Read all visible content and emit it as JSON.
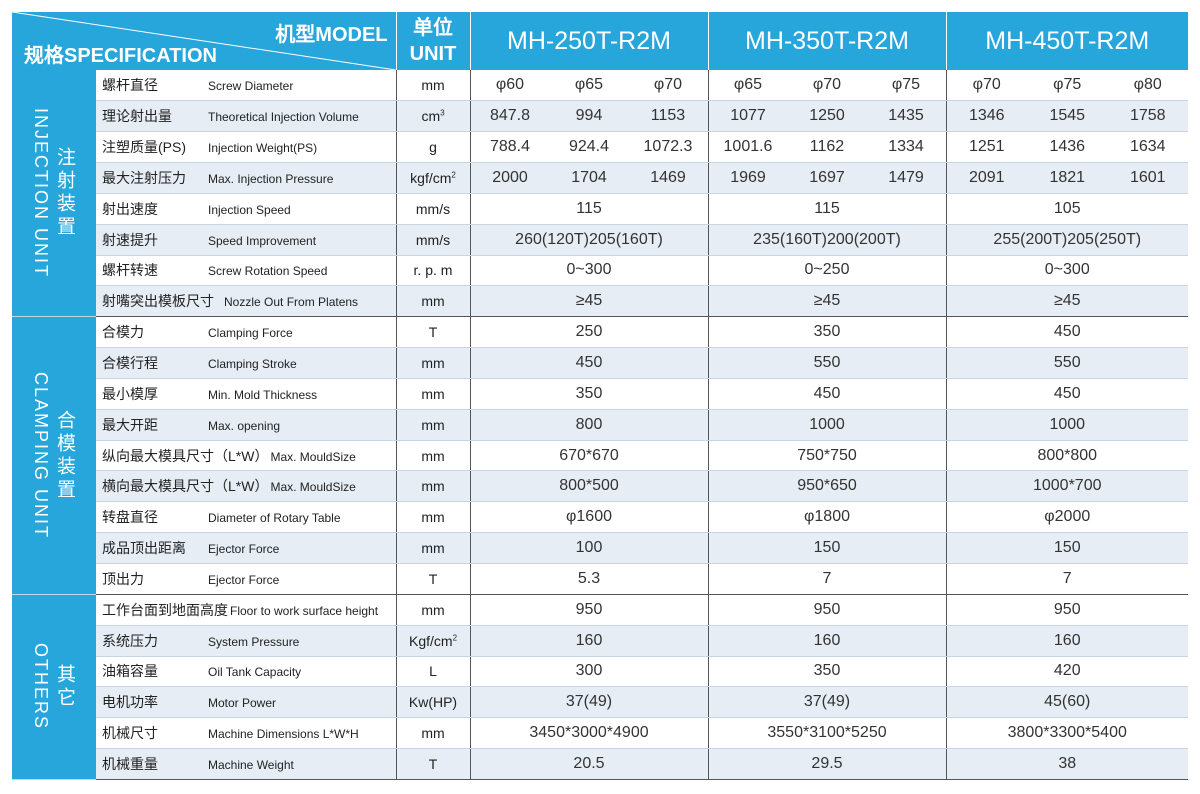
{
  "header": {
    "model_label": "机型MODEL",
    "spec_label": "规格SPECIFICATION",
    "unit_label_zh": "单位",
    "unit_label_en": "UNIT",
    "models": [
      "MH-250T-R2M",
      "MH-350T-R2M",
      "MH-450T-R2M"
    ]
  },
  "colors": {
    "header_blue": "#27a6dc",
    "row_shade": "#e6edf5"
  },
  "groups": [
    {
      "zh": "注射装置",
      "en": "INJECTION UNIT",
      "rows": [
        {
          "zh": "螺杆直径",
          "en": "Screw  Diameter",
          "unit": "mm",
          "unit_sup": "",
          "values": [
            "φ60",
            "φ65",
            "φ70",
            "φ65",
            "φ70",
            "φ75",
            "φ70",
            "φ75",
            "φ80"
          ]
        },
        {
          "zh": "理论射出量",
          "en": "Theoretical  Injection  Volume",
          "unit": "cm",
          "unit_sup": "3",
          "values": [
            "847.8",
            "994",
            "1153",
            "1077",
            "1250",
            "1435",
            "1346",
            "1545",
            "1758"
          ]
        },
        {
          "zh": "注塑质量(PS)",
          "en": "Injection  Weight(PS)",
          "unit": "g",
          "unit_sup": "",
          "values": [
            "788.4",
            "924.4",
            "1072.3",
            "1001.6",
            "1162",
            "1334",
            "1251",
            "1436",
            "1634"
          ]
        },
        {
          "zh": "最大注射压力",
          "en": "Max. Injection  Pressure",
          "unit": "kgf/cm",
          "unit_sup": "2",
          "values": [
            "2000",
            "1704",
            "1469",
            "1969",
            "1697",
            "1479",
            "2091",
            "1821",
            "1601"
          ]
        },
        {
          "zh": "射出速度",
          "en": "Injection  Speed",
          "unit": "mm/s",
          "unit_sup": "",
          "values": [
            "115",
            "115",
            "105"
          ]
        },
        {
          "zh": "射速提升",
          "en": "Speed Improvement",
          "unit": "mm/s",
          "unit_sup": "",
          "values": [
            "260(120T)205(160T)",
            "235(160T)200(200T)",
            "255(200T)205(250T)"
          ]
        },
        {
          "zh": "螺杆转速",
          "en": "Screw  Rotation  Speed",
          "unit": "r. p. m",
          "unit_sup": "",
          "values": [
            "0~300",
            "0~250",
            "0~300"
          ]
        },
        {
          "zh": "射嘴突出模板尺寸",
          "en": "Nozzle  Out  From  Platens",
          "unit": "mm",
          "unit_sup": "",
          "values": [
            "≥45",
            "≥45",
            "≥45"
          ]
        }
      ]
    },
    {
      "zh": "合模装置",
      "en": "CLAMPING UNIT",
      "rows": [
        {
          "zh": "合模力",
          "en": "Clamping  Force",
          "unit": "T",
          "unit_sup": "",
          "values": [
            "250",
            "350",
            "450"
          ]
        },
        {
          "zh": "合模行程",
          "en": "Clamping  Stroke",
          "unit": "mm",
          "unit_sup": "",
          "values": [
            "450",
            "550",
            "550"
          ]
        },
        {
          "zh": "最小模厚",
          "en": "Min. Mold  Thickness",
          "unit": "mm",
          "unit_sup": "",
          "values": [
            "350",
            "450",
            "450"
          ]
        },
        {
          "zh": "最大开距",
          "en": "Max. opening",
          "unit": "mm",
          "unit_sup": "",
          "values": [
            "800",
            "1000",
            "1000"
          ]
        },
        {
          "zh": "纵向最大模具尺寸（L*W）",
          "en": "Max. MouldSize",
          "unit": "mm",
          "unit_sup": "",
          "values": [
            "670*670",
            "750*750",
            "800*800"
          ]
        },
        {
          "zh": "横向最大模具尺寸（L*W）",
          "en": "Max. MouldSize",
          "unit": "mm",
          "unit_sup": "",
          "values": [
            "800*500",
            "950*650",
            "1000*700"
          ]
        },
        {
          "zh": "转盘直径",
          "en": "Diameter  of  Rotary  Table",
          "unit": "mm",
          "unit_sup": "",
          "values": [
            "φ1600",
            "φ1800",
            "φ2000"
          ]
        },
        {
          "zh": "成品顶出距离",
          "en": "Ejector  Force",
          "unit": "mm",
          "unit_sup": "",
          "values": [
            "100",
            "150",
            "150"
          ]
        },
        {
          "zh": "顶出力",
          "en": "Ejector  Force",
          "unit": "T",
          "unit_sup": "",
          "values": [
            "5.3",
            "7",
            "7"
          ]
        }
      ]
    },
    {
      "zh": "其它",
      "en": "OTHERS",
      "rows": [
        {
          "zh": "工作台面到地面高度",
          "en": "Floor to work surface height",
          "unit": "mm",
          "unit_sup": "",
          "values": [
            "950",
            "950",
            "950"
          ]
        },
        {
          "zh": "系统压力",
          "en": "System  Pressure",
          "unit": "Kgf/cm",
          "unit_sup": "2",
          "values": [
            "160",
            "160",
            "160"
          ]
        },
        {
          "zh": "油箱容量",
          "en": "Oil  Tank Capacity",
          "unit": "L",
          "unit_sup": "",
          "values": [
            "300",
            "350",
            "420"
          ]
        },
        {
          "zh": "电机功率",
          "en": "Motor Power",
          "unit": "Kw(HP)",
          "unit_sup": "",
          "values": [
            "37(49)",
            "37(49)",
            "45(60)"
          ]
        },
        {
          "zh": "机械尺寸",
          "en": "Machine Dimensions   L*W*H",
          "unit": "mm",
          "unit_sup": "",
          "values": [
            "3450*3000*4900",
            "3550*3100*5250",
            "3800*3300*5400"
          ]
        },
        {
          "zh": "机械重量",
          "en": "Machine Weight",
          "unit": "T",
          "unit_sup": "",
          "values": [
            "20.5",
            "29.5",
            "38"
          ]
        }
      ]
    }
  ]
}
